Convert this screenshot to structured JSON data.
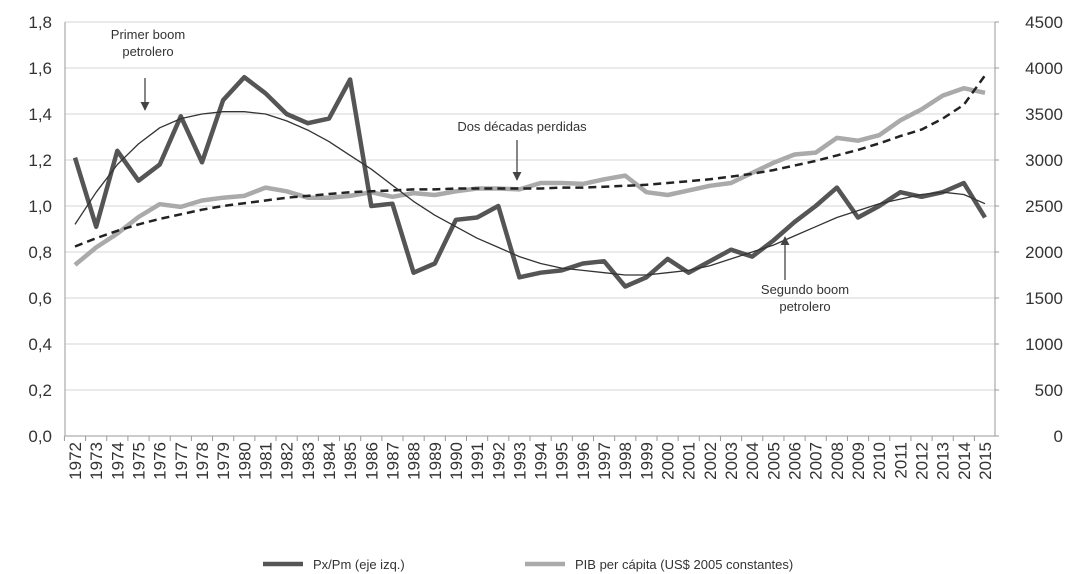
{
  "chart_data": {
    "type": "line",
    "categories": [
      "1972",
      "1973",
      "1974",
      "1975",
      "1976",
      "1977",
      "1978",
      "1979",
      "1980",
      "1981",
      "1982",
      "1983",
      "1984",
      "1985",
      "1986",
      "1987",
      "1988",
      "1989",
      "1990",
      "1991",
      "1992",
      "1993",
      "1994",
      "1995",
      "1996",
      "1997",
      "1998",
      "1999",
      "2000",
      "2001",
      "2002",
      "2003",
      "2004",
      "2005",
      "2006",
      "2007",
      "2008",
      "2009",
      "2010",
      "2011",
      "2012",
      "2013",
      "2014",
      "2015"
    ],
    "series": [
      {
        "name": "Px/Pm (eje izq.)",
        "color": "#555555",
        "axis": "y",
        "values": [
          1.21,
          0.91,
          1.24,
          1.11,
          1.18,
          1.39,
          1.19,
          1.46,
          1.56,
          1.49,
          1.4,
          1.36,
          1.38,
          1.55,
          1.0,
          1.01,
          0.71,
          0.75,
          0.94,
          0.95,
          1.0,
          0.69,
          0.71,
          0.72,
          0.75,
          0.76,
          0.65,
          0.69,
          0.77,
          0.71,
          0.76,
          0.81,
          0.78,
          0.85,
          0.93,
          1.0,
          1.08,
          0.95,
          1.0,
          1.06,
          1.04,
          1.06,
          1.1,
          0.95
        ]
      },
      {
        "name": "PIB per cápita (US$ 2005 constantes)",
        "color": "#aaaaaa",
        "axis": "y2",
        "values": [
          1860,
          2050,
          2200,
          2380,
          2520,
          2490,
          2560,
          2590,
          2610,
          2700,
          2660,
          2590,
          2590,
          2610,
          2650,
          2600,
          2640,
          2620,
          2660,
          2690,
          2690,
          2680,
          2750,
          2750,
          2740,
          2790,
          2830,
          2650,
          2620,
          2670,
          2720,
          2750,
          2860,
          2970,
          3060,
          3080,
          3240,
          3210,
          3270,
          3430,
          3550,
          3700,
          3780,
          3730
        ]
      },
      {
        "style": "trend",
        "color": "#333333",
        "axis": "y",
        "values": [
          0.92,
          1.06,
          1.18,
          1.27,
          1.34,
          1.38,
          1.4,
          1.41,
          1.41,
          1.4,
          1.37,
          1.33,
          1.28,
          1.22,
          1.16,
          1.09,
          1.02,
          0.96,
          0.91,
          0.86,
          0.82,
          0.78,
          0.75,
          0.73,
          0.72,
          0.71,
          0.7,
          0.7,
          0.71,
          0.72,
          0.74,
          0.77,
          0.8,
          0.83,
          0.87,
          0.91,
          0.95,
          0.98,
          1.01,
          1.03,
          1.05,
          1.06,
          1.05,
          1.01
        ]
      },
      {
        "style": "dashed-trend",
        "color": "#222222",
        "axis": "y2",
        "values": [
          2060,
          2150,
          2230,
          2300,
          2360,
          2410,
          2460,
          2500,
          2530,
          2560,
          2590,
          2610,
          2630,
          2650,
          2660,
          2670,
          2680,
          2680,
          2690,
          2690,
          2690,
          2690,
          2690,
          2700,
          2700,
          2710,
          2720,
          2730,
          2750,
          2770,
          2790,
          2820,
          2850,
          2890,
          2940,
          2990,
          3050,
          3110,
          3180,
          3260,
          3330,
          3450,
          3600,
          3920
        ]
      }
    ],
    "ylim": [
      0,
      1.8
    ],
    "yticks": [
      {
        "value": 0,
        "label": "0,0"
      },
      {
        "value": 0.2,
        "label": "0,2"
      },
      {
        "value": 0.4,
        "label": "0,4"
      },
      {
        "value": 0.6,
        "label": "0,6"
      },
      {
        "value": 0.8,
        "label": "0,8"
      },
      {
        "value": 1,
        "label": "1,0"
      },
      {
        "value": 1.2,
        "label": "1,2"
      },
      {
        "value": 1.4,
        "label": "1,4"
      },
      {
        "value": 1.6,
        "label": "1,6"
      },
      {
        "value": 1.8,
        "label": "1,8"
      }
    ],
    "y2lim": [
      0,
      4500
    ],
    "y2ticks": [
      0,
      500,
      1000,
      1500,
      2000,
      2500,
      3000,
      3500,
      4000,
      4500
    ],
    "grid": true,
    "legend": "bottom",
    "annotations": [
      {
        "lines": [
          "Primer boom",
          "petrolero"
        ]
      },
      {
        "lines": [
          "Dos décadas perdidas"
        ]
      },
      {
        "lines": [
          "Segundo boom",
          "petrolero"
        ]
      }
    ]
  }
}
